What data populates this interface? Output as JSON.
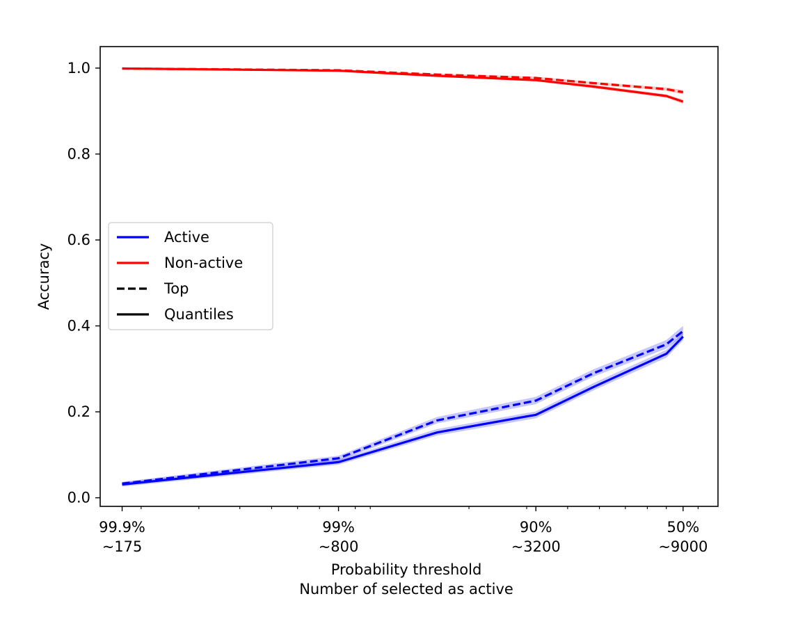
{
  "chart_data": {
    "type": "line",
    "title": "",
    "xlabel_lines": [
      "Probability threshold",
      "Number of selected as active"
    ],
    "ylabel": "Accuracy",
    "x_axis_scale": "log",
    "x_tick_labels": [
      {
        "top": "99.9%",
        "bottom": "~175",
        "value": 175
      },
      {
        "top": "99%",
        "bottom": "~800",
        "value": 800
      },
      {
        "top": "90%",
        "bottom": "~3200",
        "value": 3200
      },
      {
        "top": "50%",
        "bottom": "~9000",
        "value": 9000
      }
    ],
    "ylim": [
      -0.02,
      1.05
    ],
    "y_ticks": [
      {
        "value": 0.0,
        "label": "0.0"
      },
      {
        "value": 0.2,
        "label": "0.2"
      },
      {
        "value": 0.4,
        "label": "0.4"
      },
      {
        "value": 0.6,
        "label": "0.6"
      },
      {
        "value": 0.8,
        "label": "0.8"
      },
      {
        "value": 1.0,
        "label": "1.0"
      }
    ],
    "grid": false,
    "legend_position": "center-left",
    "legend": [
      {
        "label": "Active",
        "color": "#0000ff",
        "style": "solid"
      },
      {
        "label": "Non-active",
        "color": "#ff0000",
        "style": "solid"
      },
      {
        "label": "Top",
        "color": "#000000",
        "style": "dashed"
      },
      {
        "label": "Quantiles",
        "color": "#000000",
        "style": "solid"
      }
    ],
    "series": [
      {
        "group": "Active",
        "kind": "Quantiles",
        "color": "#0000ff",
        "style": "solid",
        "points": [
          [
            175,
            0.031
          ],
          [
            800,
            0.083
          ],
          [
            1600,
            0.152
          ],
          [
            3200,
            0.193
          ],
          [
            4800,
            0.258
          ],
          [
            8000,
            0.335
          ],
          [
            9000,
            0.375
          ]
        ],
        "band": [
          [
            175,
            0.026,
            0.036
          ],
          [
            800,
            0.077,
            0.089
          ],
          [
            1600,
            0.145,
            0.16
          ],
          [
            3200,
            0.185,
            0.201
          ],
          [
            4800,
            0.25,
            0.267
          ],
          [
            8000,
            0.326,
            0.344
          ],
          [
            9000,
            0.366,
            0.385
          ]
        ]
      },
      {
        "group": "Active",
        "kind": "Top",
        "color": "#0000ff",
        "style": "dashed",
        "points": [
          [
            175,
            0.033
          ],
          [
            800,
            0.092
          ],
          [
            1600,
            0.18
          ],
          [
            3200,
            0.226
          ],
          [
            4800,
            0.29
          ],
          [
            8000,
            0.357
          ],
          [
            9000,
            0.388
          ]
        ],
        "band": [
          [
            175,
            0.029,
            0.037
          ],
          [
            800,
            0.086,
            0.098
          ],
          [
            1600,
            0.173,
            0.188
          ],
          [
            3200,
            0.218,
            0.235
          ],
          [
            4800,
            0.282,
            0.299
          ],
          [
            8000,
            0.347,
            0.367
          ],
          [
            9000,
            0.378,
            0.4
          ]
        ]
      },
      {
        "group": "Non-active",
        "kind": "Quantiles",
        "color": "#ff0000",
        "style": "solid",
        "points": [
          [
            175,
            0.999
          ],
          [
            800,
            0.994
          ],
          [
            1600,
            0.982
          ],
          [
            3200,
            0.972
          ],
          [
            4800,
            0.957
          ],
          [
            8000,
            0.935
          ],
          [
            9000,
            0.922
          ]
        ],
        "band": [
          [
            175,
            0.998,
            1.0
          ],
          [
            800,
            0.993,
            0.995
          ],
          [
            1600,
            0.98,
            0.984
          ],
          [
            3200,
            0.969,
            0.975
          ],
          [
            4800,
            0.953,
            0.961
          ],
          [
            8000,
            0.931,
            0.939
          ],
          [
            9000,
            0.917,
            0.927
          ]
        ]
      },
      {
        "group": "Non-active",
        "kind": "Top",
        "color": "#ff0000",
        "style": "dashed",
        "points": [
          [
            175,
            0.999
          ],
          [
            800,
            0.995
          ],
          [
            1600,
            0.985
          ],
          [
            3200,
            0.977
          ],
          [
            4800,
            0.965
          ],
          [
            8000,
            0.951
          ],
          [
            9000,
            0.944
          ]
        ],
        "band": [
          [
            175,
            0.998,
            1.0
          ],
          [
            800,
            0.994,
            0.996
          ],
          [
            1600,
            0.983,
            0.987
          ],
          [
            3200,
            0.975,
            0.98
          ],
          [
            4800,
            0.962,
            0.968
          ],
          [
            8000,
            0.947,
            0.955
          ],
          [
            9000,
            0.939,
            0.949
          ]
        ]
      }
    ]
  }
}
